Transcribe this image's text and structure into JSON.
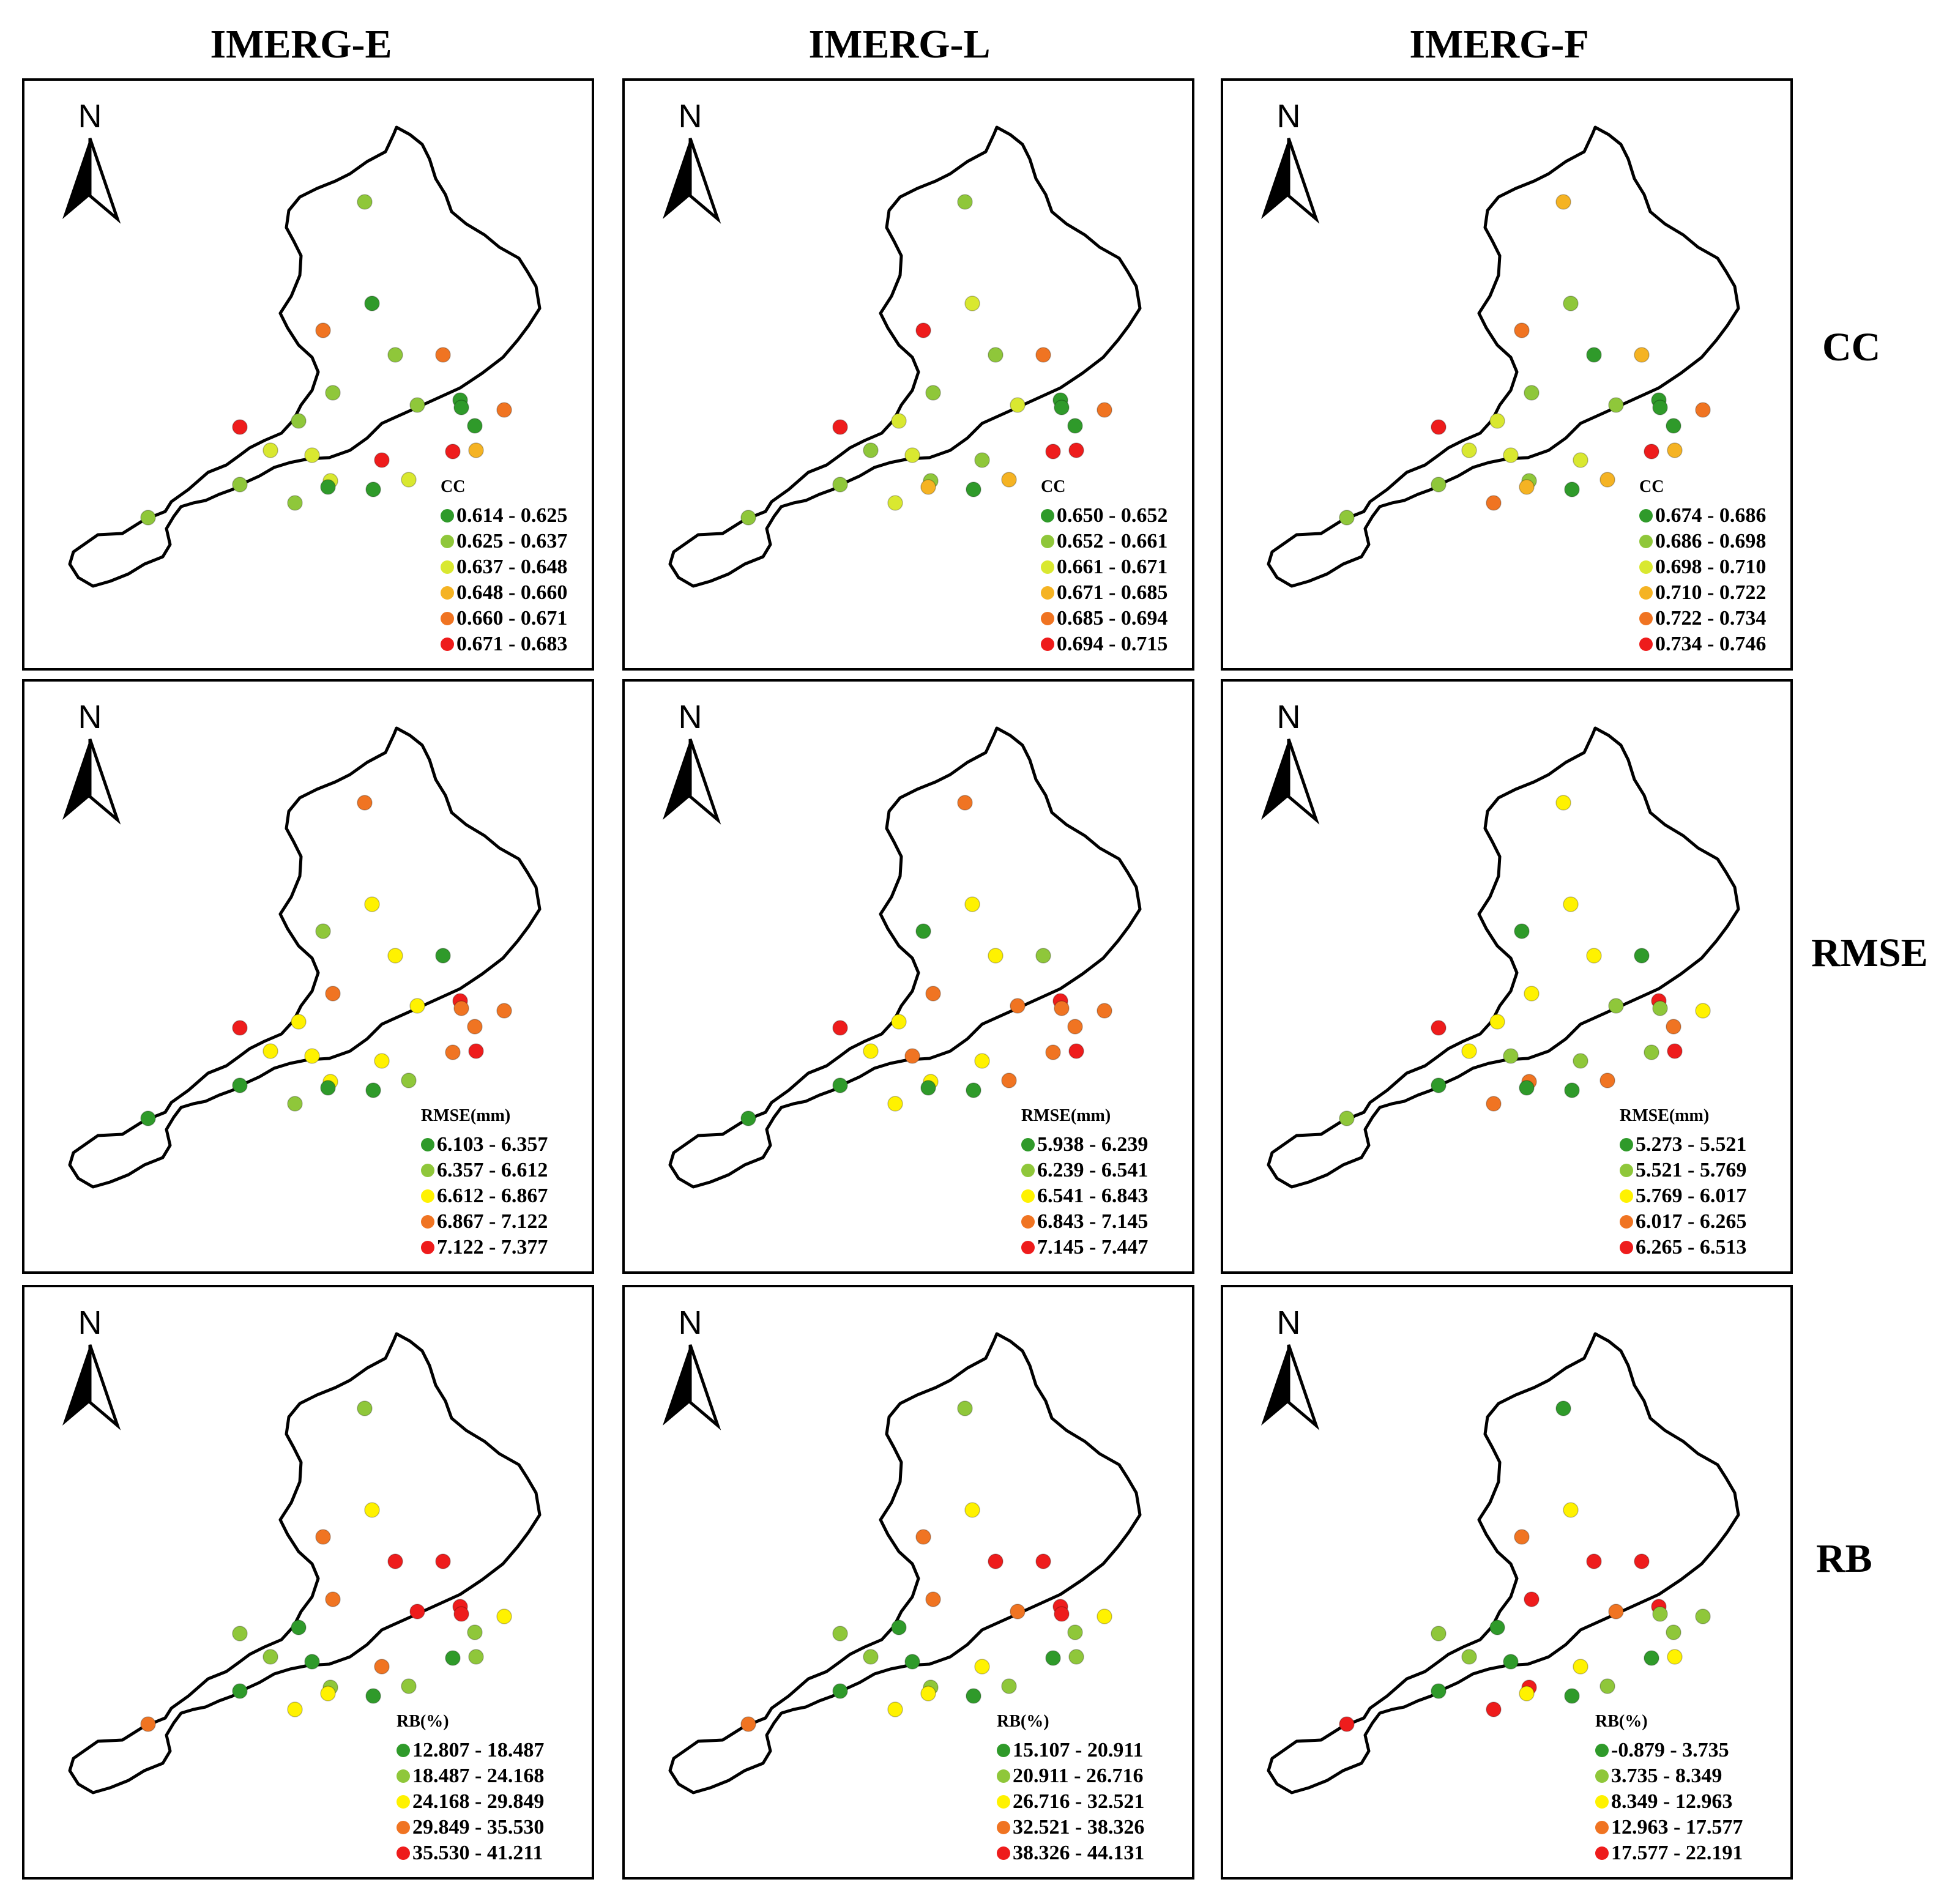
{
  "columns": [
    "IMERG-E",
    "IMERG-L",
    "IMERG-F"
  ],
  "rows": [
    "CC",
    "RMSE",
    "RB"
  ],
  "north_label": "N",
  "colors": {
    "dark_green": "#2f9a2a",
    "light_green": "#8fc73a",
    "yellow_green": "#d9e830",
    "yellow": "#fff200",
    "orange_yellow": "#f5b323",
    "orange": "#f07422",
    "red": "#ee1c1c",
    "outline": "#000000"
  },
  "panels": [
    {
      "row": "CC",
      "col": "IMERG-E",
      "legend_title": "CC",
      "classes": [
        {
          "label": "0.614 - 0.625",
          "color": "#2f9a2a"
        },
        {
          "label": "0.625 - 0.637",
          "color": "#8fc73a"
        },
        {
          "label": "0.637 - 0.648",
          "color": "#d9e830"
        },
        {
          "label": "0.648 - 0.660",
          "color": "#f5b323"
        },
        {
          "label": "0.660 - 0.671",
          "color": "#f07422"
        },
        {
          "label": "0.671 - 0.683",
          "color": "#ee1c1c"
        }
      ],
      "station_classes": [
        1,
        0,
        4,
        1,
        4,
        0,
        1,
        0,
        1,
        5,
        1,
        2,
        2,
        4,
        0,
        3,
        5,
        5,
        1,
        2,
        2,
        0,
        1,
        0,
        1
      ]
    },
    {
      "row": "CC",
      "col": "IMERG-L",
      "legend_title": "CC",
      "classes": [
        {
          "label": "0.650 - 0.652",
          "color": "#2f9a2a"
        },
        {
          "label": "0.652 - 0.661",
          "color": "#8fc73a"
        },
        {
          "label": "0.661 - 0.671",
          "color": "#d9e830"
        },
        {
          "label": "0.671 - 0.685",
          "color": "#f5b323"
        },
        {
          "label": "0.685 - 0.694",
          "color": "#f07422"
        },
        {
          "label": "0.694 - 0.715",
          "color": "#ee1c1c"
        }
      ],
      "station_classes": [
        1,
        2,
        5,
        1,
        4,
        0,
        2,
        0,
        1,
        5,
        2,
        1,
        2,
        4,
        0,
        5,
        5,
        1,
        1,
        3,
        1,
        0,
        2,
        3,
        1
      ]
    },
    {
      "row": "CC",
      "col": "IMERG-F",
      "legend_title": "CC",
      "classes": [
        {
          "label": "0.674 - 0.686",
          "color": "#2f9a2a"
        },
        {
          "label": "0.686 - 0.698",
          "color": "#8fc73a"
        },
        {
          "label": "0.698 - 0.710",
          "color": "#d9e830"
        },
        {
          "label": "0.710 - 0.722",
          "color": "#f5b323"
        },
        {
          "label": "0.722 - 0.734",
          "color": "#f07422"
        },
        {
          "label": "0.734 - 0.746",
          "color": "#ee1c1c"
        }
      ],
      "station_classes": [
        3,
        1,
        4,
        0,
        3,
        0,
        1,
        0,
        1,
        5,
        2,
        2,
        2,
        4,
        0,
        3,
        5,
        2,
        1,
        3,
        1,
        0,
        4,
        3,
        1
      ]
    },
    {
      "row": "RMSE",
      "col": "IMERG-E",
      "legend_title": "RMSE(mm)",
      "classes": [
        {
          "label": "6.103 - 6.357",
          "color": "#2f9a2a"
        },
        {
          "label": "6.357 - 6.612",
          "color": "#8fc73a"
        },
        {
          "label": "6.612 - 6.867",
          "color": "#fff200"
        },
        {
          "label": "6.867 - 7.122",
          "color": "#f07422"
        },
        {
          "label": "7.122 - 7.377",
          "color": "#ee1c1c"
        }
      ],
      "station_classes": [
        3,
        2,
        1,
        2,
        0,
        4,
        2,
        3,
        3,
        4,
        2,
        2,
        2,
        3,
        3,
        4,
        3,
        2,
        0,
        1,
        2,
        0,
        1,
        0,
        0
      ]
    },
    {
      "row": "RMSE",
      "col": "IMERG-L",
      "legend_title": "RMSE(mm)",
      "classes": [
        {
          "label": "5.938 - 6.239",
          "color": "#2f9a2a"
        },
        {
          "label": "6.239 - 6.541",
          "color": "#8fc73a"
        },
        {
          "label": "6.541 - 6.843",
          "color": "#fff200"
        },
        {
          "label": "6.843 - 7.145",
          "color": "#f07422"
        },
        {
          "label": "7.145 - 7.447",
          "color": "#ee1c1c"
        }
      ],
      "station_classes": [
        3,
        2,
        0,
        2,
        1,
        4,
        3,
        3,
        3,
        4,
        2,
        2,
        3,
        3,
        3,
        4,
        3,
        2,
        0,
        3,
        2,
        0,
        2,
        0,
        0
      ]
    },
    {
      "row": "RMSE",
      "col": "IMERG-F",
      "legend_title": "RMSE(mm)",
      "classes": [
        {
          "label": "5.273 - 5.521",
          "color": "#2f9a2a"
        },
        {
          "label": "5.521 - 5.769",
          "color": "#8fc73a"
        },
        {
          "label": "5.769 - 6.017",
          "color": "#fff200"
        },
        {
          "label": "6.017 - 6.265",
          "color": "#f07422"
        },
        {
          "label": "6.265 - 6.513",
          "color": "#ee1c1c"
        }
      ],
      "station_classes": [
        2,
        2,
        0,
        2,
        0,
        4,
        1,
        1,
        2,
        4,
        2,
        2,
        1,
        2,
        3,
        4,
        1,
        1,
        0,
        3,
        3,
        0,
        3,
        0,
        1
      ]
    },
    {
      "row": "RB",
      "col": "IMERG-E",
      "legend_title": "RB(%)",
      "classes": [
        {
          "label": "12.807 - 18.487",
          "color": "#2f9a2a"
        },
        {
          "label": "18.487 - 24.168",
          "color": "#8fc73a"
        },
        {
          "label": "24.168 - 29.849",
          "color": "#fff200"
        },
        {
          "label": "29.849 - 35.530",
          "color": "#f07422"
        },
        {
          "label": "35.530 - 41.211",
          "color": "#ee1c1c"
        }
      ],
      "station_classes": [
        1,
        2,
        3,
        4,
        4,
        4,
        4,
        4,
        3,
        1,
        0,
        1,
        0,
        2,
        1,
        1,
        0,
        3,
        0,
        1,
        1,
        0,
        2,
        2,
        3
      ]
    },
    {
      "row": "RB",
      "col": "IMERG-L",
      "legend_title": "RB(%)",
      "classes": [
        {
          "label": "15.107 - 20.911",
          "color": "#2f9a2a"
        },
        {
          "label": "20.911 - 26.716",
          "color": "#8fc73a"
        },
        {
          "label": "26.716 - 32.521",
          "color": "#fff200"
        },
        {
          "label": "32.521 - 38.326",
          "color": "#f07422"
        },
        {
          "label": "38.326 - 44.131",
          "color": "#ee1c1c"
        }
      ],
      "station_classes": [
        1,
        2,
        3,
        4,
        4,
        4,
        3,
        4,
        3,
        1,
        0,
        1,
        0,
        2,
        1,
        1,
        0,
        2,
        0,
        1,
        1,
        0,
        2,
        2,
        3
      ]
    },
    {
      "row": "RB",
      "col": "IMERG-F",
      "legend_title": "RB(%)",
      "classes": [
        {
          "label": "-0.879 - 3.735",
          "color": "#2f9a2a"
        },
        {
          "label": "3.735 - 8.349",
          "color": "#8fc73a"
        },
        {
          "label": "8.349 - 12.963",
          "color": "#fff200"
        },
        {
          "label": "12.963 - 17.577",
          "color": "#f07422"
        },
        {
          "label": "17.577 - 22.191",
          "color": "#ee1c1c"
        }
      ],
      "station_classes": [
        0,
        2,
        3,
        4,
        4,
        4,
        3,
        1,
        4,
        1,
        0,
        1,
        0,
        1,
        1,
        2,
        0,
        2,
        0,
        1,
        4,
        0,
        4,
        2,
        4
      ]
    }
  ]
}
